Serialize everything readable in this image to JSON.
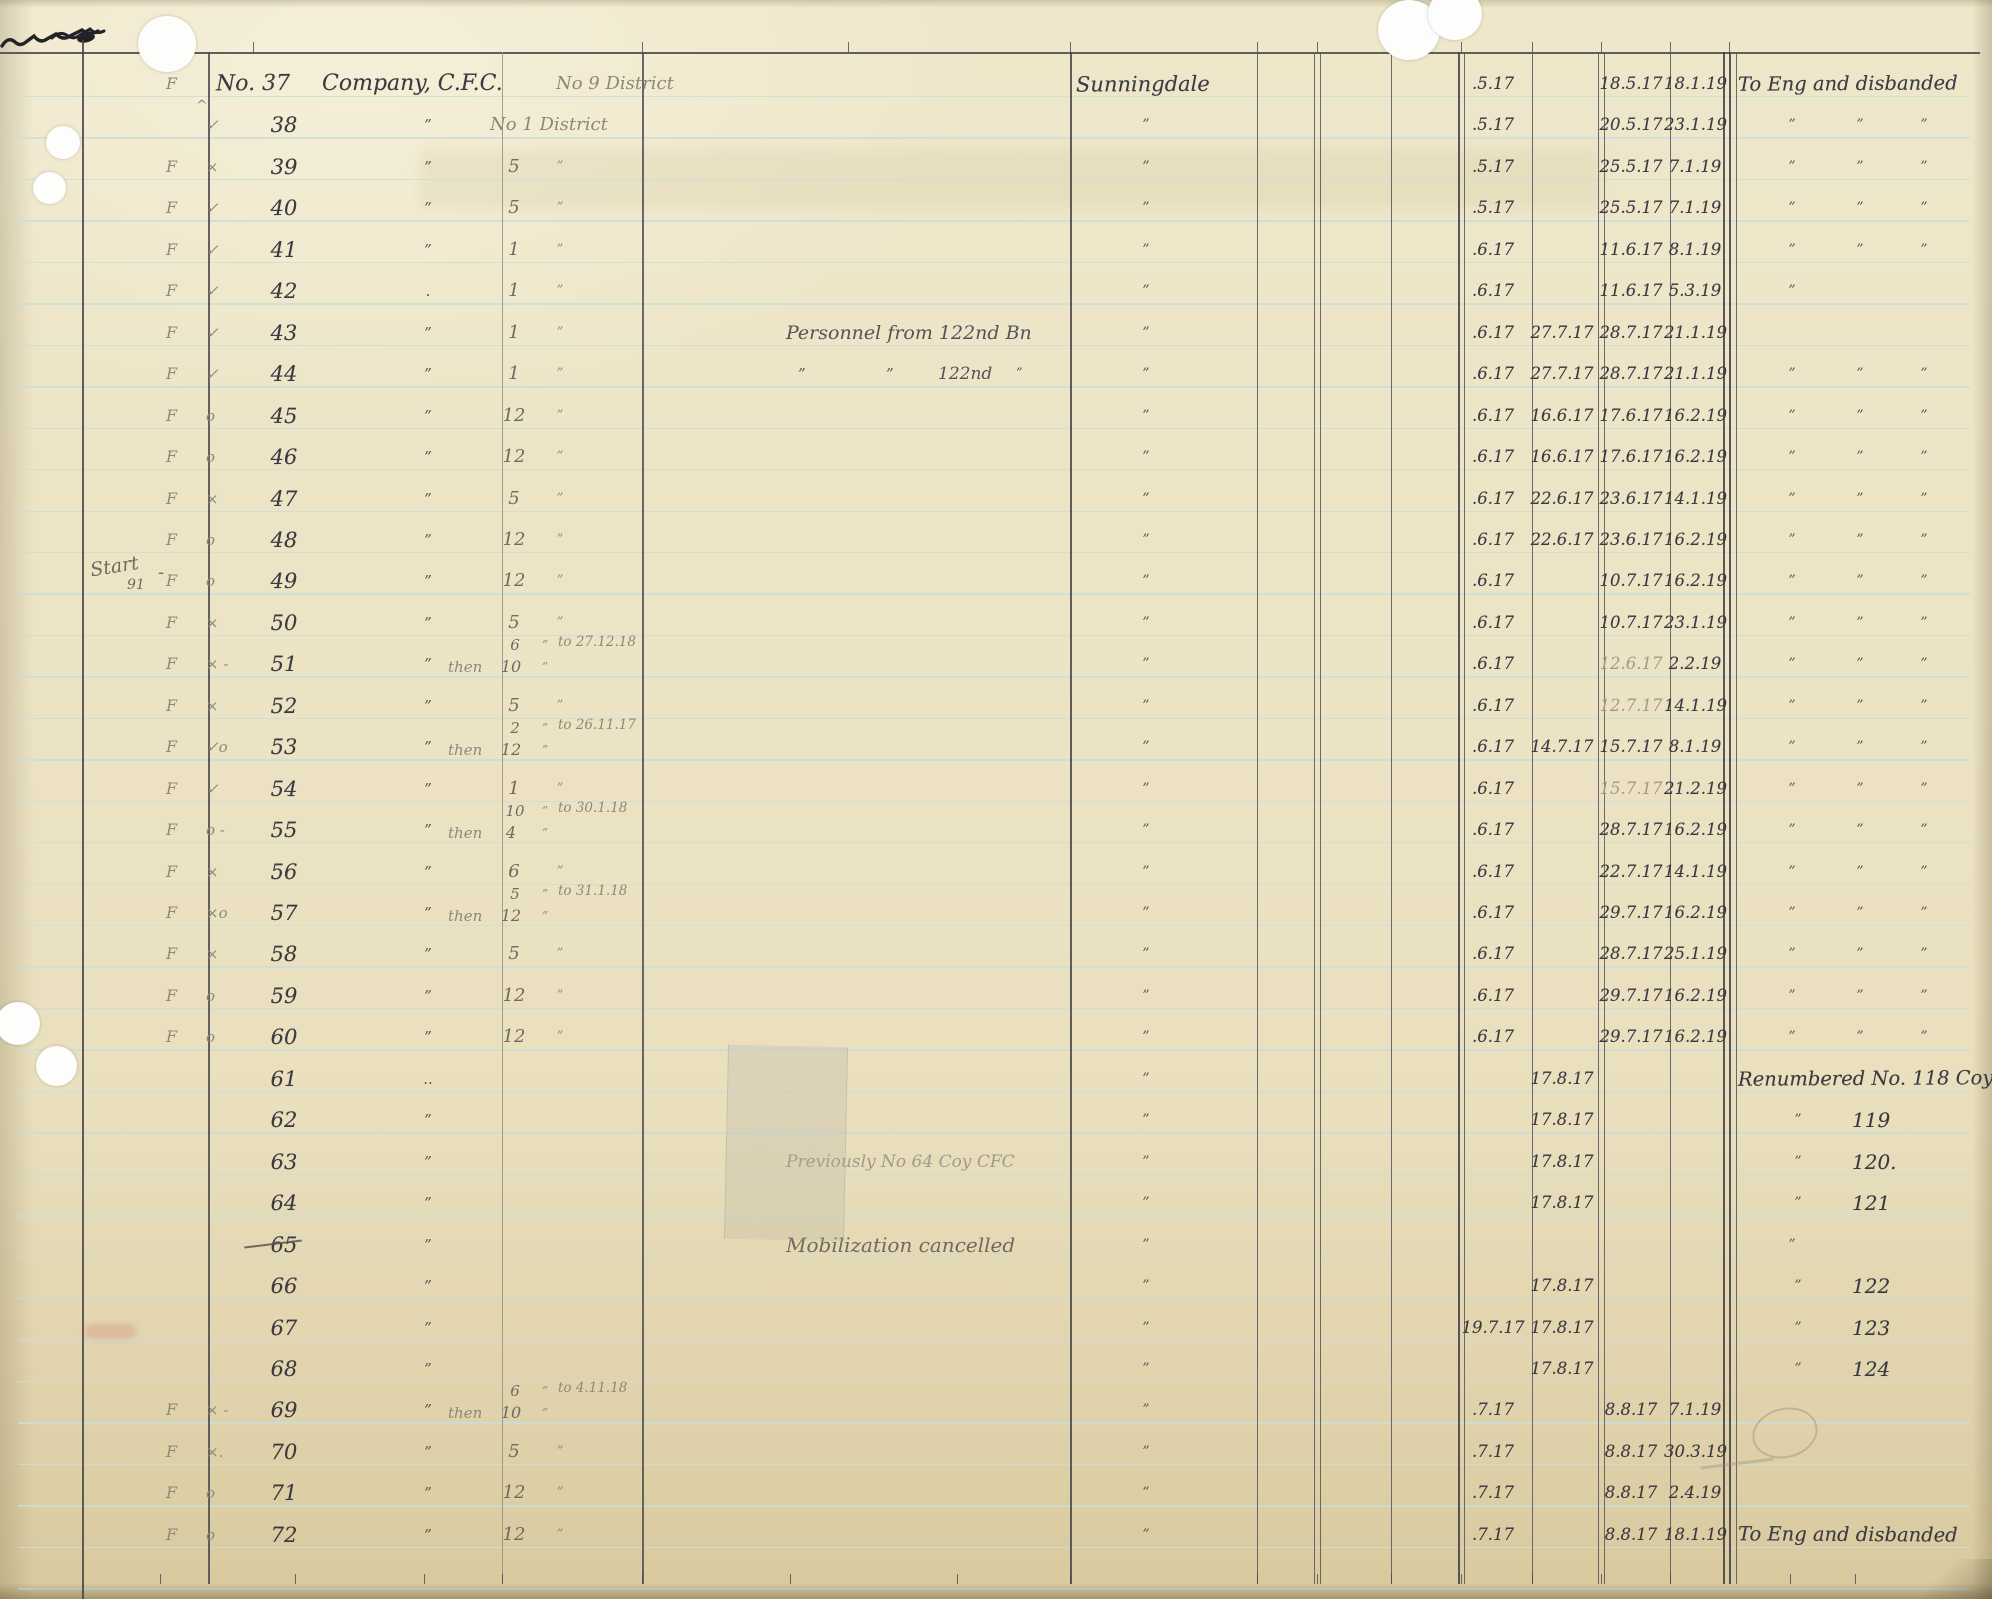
{
  "document": {
    "type": "handwritten ledger page",
    "header_row": {
      "no_label": "No.",
      "company_label": "Company, C.F.C.",
      "place": "Sunningdale"
    },
    "marginalia": {
      "start_note_word": "Start",
      "start_note_num": "91",
      "start_note_dash": "-",
      "caret": "^"
    },
    "rows": [
      {
        "no": "37",
        "f": "F",
        "no_label": "No.",
        "company": "Company, C.F.C.",
        "district_text": "No 9 District",
        "place": "Sunningdale",
        "d1": ".5.17",
        "d3": "18.5.17",
        "d4": "18.1.19",
        "remark": "To Eng and disbanded"
      },
      {
        "no": "38",
        "mark": "✓",
        "coy_ditto": "”",
        "district_text": "No 1 District",
        "place_ditto": "”",
        "d1": ".5.17",
        "d3": "20.5.17",
        "d4": "23.1.19",
        "remark_dittos": 3
      },
      {
        "no": "39",
        "f": "F",
        "mark": "×",
        "coy_ditto": "”",
        "district_no": "5",
        "district_ditto": "”",
        "place_ditto": "”",
        "d1": ".5.17",
        "d3": "25.5.17",
        "d4": "7.1.19",
        "remark_dittos": 3
      },
      {
        "no": "40",
        "f": "F",
        "mark": "✓",
        "coy_ditto": "”",
        "district_no": "5",
        "district_ditto": "”",
        "place_ditto": "”",
        "d1": ".5.17",
        "d3": "25.5.17",
        "d4": "7.1.19",
        "remark_dittos": 3
      },
      {
        "no": "41",
        "f": "F",
        "mark": "✓",
        "coy_ditto": "”",
        "district_no": "1",
        "district_ditto": "”",
        "place_ditto": "”",
        "d1": ".6.17",
        "d3": "11.6.17",
        "d4": "8.1.19",
        "remark_dittos": 3
      },
      {
        "no": "42",
        "f": "F",
        "mark": "✓",
        "coy_ditto": ".",
        "district_no": "1",
        "district_ditto": "”",
        "place_ditto": "”",
        "d1": ".6.17",
        "d3": "11.6.17",
        "d4": "5.3.19",
        "remark_dittos": 1
      },
      {
        "no": "43",
        "f": "F",
        "mark": "✓",
        "coy_ditto": "”",
        "district_no": "1",
        "district_ditto": "”",
        "note": "Personnel from 122nd Bn",
        "place_ditto": "”",
        "d1": ".6.17",
        "d2": "27.7.17",
        "d3": "28.7.17",
        "d4": "21.1.19"
      },
      {
        "no": "44",
        "f": "F",
        "mark": "✓",
        "coy_ditto": "”",
        "district_no": "1",
        "district_ditto": "”",
        "note_parts": [
          "”",
          "”",
          "122nd",
          "”"
        ],
        "place_ditto": "”",
        "d1": ".6.17",
        "d2": "27.7.17",
        "d3": "28.7.17",
        "d4": "21.1.19",
        "remark_dittos": 3
      },
      {
        "no": "45",
        "f": "F",
        "mark": "o",
        "coy_ditto": "”",
        "district_no": "12",
        "district_ditto": "”",
        "place_ditto": "”",
        "d1": ".6.17",
        "d2": "16.6.17",
        "d3": "17.6.17",
        "d4": "16.2.19",
        "remark_dittos": 3
      },
      {
        "no": "46",
        "f": "F",
        "mark": "o",
        "coy_ditto": "”",
        "district_no": "12",
        "district_ditto": "”",
        "place_ditto": "”",
        "d1": ".6.17",
        "d2": "16.6.17",
        "d3": "17.6.17",
        "d4": "16.2.19",
        "remark_dittos": 3
      },
      {
        "no": "47",
        "f": "F",
        "mark": "×",
        "coy_ditto": "”",
        "district_no": "5",
        "district_ditto": "”",
        "place_ditto": "”",
        "d1": ".6.17",
        "d2": "22.6.17",
        "d3": "23.6.17",
        "d4": "14.1.19",
        "remark_dittos": 3
      },
      {
        "no": "48",
        "f": "F",
        "mark": "o",
        "coy_ditto": "”",
        "district_no": "12",
        "district_ditto": "”",
        "place_ditto": "”",
        "d1": ".6.17",
        "d2": "22.6.17",
        "d3": "23.6.17",
        "d4": "16.2.19",
        "remark_dittos": 3
      },
      {
        "no": "49",
        "f": "F",
        "mark": "o",
        "margin_note": true,
        "coy_ditto": "”",
        "district_no": "12",
        "district_ditto": "”",
        "place_ditto": "”",
        "d1": ".6.17",
        "d3": "10.7.17",
        "d4": "16.2.19",
        "remark_dittos": 3
      },
      {
        "no": "50",
        "f": "F",
        "mark": "×",
        "coy_ditto": "”",
        "district_no": "5",
        "district_ditto": "”",
        "place_ditto": "”",
        "d1": ".6.17",
        "d3": "10.7.17",
        "d4": "23.1.19",
        "remark_dittos": 3
      },
      {
        "no": "51",
        "f": "F",
        "mark": "× -",
        "coy_ditto": "”",
        "then": {
          "label": "then",
          "top": "6",
          "bottom": "10",
          "ditto": "”",
          "to": "to 27.12.18"
        },
        "place_ditto": "”",
        "d1": ".6.17",
        "d3": "12.6.17",
        "d3_pencil": true,
        "d4": "2.2.19",
        "remark_dittos": 3
      },
      {
        "no": "52",
        "f": "F",
        "mark": "×",
        "coy_ditto": "”",
        "district_no": "5",
        "district_ditto": "”",
        "place_ditto": "”",
        "d1": ".6.17",
        "d3": "12.7.17",
        "d3_pencil": true,
        "d4": "14.1.19",
        "remark_dittos": 3
      },
      {
        "no": "53",
        "f": "F",
        "mark": "✓o",
        "coy_ditto": "”",
        "then": {
          "label": "then",
          "top": "2",
          "bottom": "12",
          "ditto": "”",
          "to": "to 26.11.17"
        },
        "place_ditto": "”",
        "d1": ".6.17",
        "d2": "14.7.17",
        "d3": "15.7.17",
        "d4": "8.1.19",
        "remark_dittos": 3
      },
      {
        "no": "54",
        "f": "F",
        "mark": "✓",
        "coy_ditto": "”",
        "district_no": "1",
        "district_ditto": "”",
        "place_ditto": "”",
        "d1": ".6.17",
        "d3": "15.7.17",
        "d3_pencil": true,
        "d4": "21.2.19",
        "remark_dittos": 3
      },
      {
        "no": "55",
        "f": "F",
        "mark": "o -",
        "coy_ditto": "”",
        "then": {
          "label": "then",
          "top": "10",
          "bottom": "4",
          "ditto": "”",
          "to": "to 30.1.18"
        },
        "place_ditto": "”",
        "d1": ".6.17",
        "d3": "28.7.17",
        "d4": "16.2.19",
        "remark_dittos": 3
      },
      {
        "no": "56",
        "f": "F",
        "mark": "×",
        "coy_ditto": "”",
        "district_no": "6",
        "district_ditto": "”",
        "place_ditto": "”",
        "d1": ".6.17",
        "d3": "22.7.17",
        "d4": "14.1.19",
        "remark_dittos": 3
      },
      {
        "no": "57",
        "f": "F",
        "mark": "×o",
        "coy_ditto": "”",
        "then": {
          "label": "then",
          "top": "5",
          "bottom": "12",
          "ditto": "”",
          "to": "to 31.1.18"
        },
        "place_ditto": "”",
        "d1": ".6.17",
        "d3": "29.7.17",
        "d4": "16.2.19",
        "remark_dittos": 3
      },
      {
        "no": "58",
        "f": "F",
        "mark": "×",
        "coy_ditto": "”",
        "district_no": "5",
        "district_ditto": "”",
        "place_ditto": "”",
        "d1": ".6.17",
        "d3": "28.7.17",
        "d4": "25.1.19",
        "remark_dittos": 3
      },
      {
        "no": "59",
        "f": "F",
        "mark": "o",
        "coy_ditto": "”",
        "district_no": "12",
        "district_ditto": "”",
        "place_ditto": "”",
        "d1": ".6.17",
        "d3": "29.7.17",
        "d4": "16.2.19",
        "remark_dittos": 3
      },
      {
        "no": "60",
        "f": "F",
        "mark": "o",
        "coy_ditto": "”",
        "district_no": "12",
        "district_ditto": "”",
        "place_ditto": "”",
        "d1": ".6.17",
        "d3": "29.7.17",
        "d4": "16.2.19",
        "remark_dittos": 3
      },
      {
        "no": "61",
        "coy_ditto": "..",
        "place_ditto": "”",
        "d2": "17.8.17",
        "remark": "Renumbered No. 118 Coy"
      },
      {
        "no": "62",
        "coy_ditto": "”",
        "place_ditto": "”",
        "d2": "17.8.17",
        "renumber_ditto": "”",
        "renumber_num": "119"
      },
      {
        "no": "63",
        "coy_ditto": "”",
        "note": "Previously No 64 Coy CFC",
        "note_pencil": true,
        "place_ditto": "”",
        "d2": "17.8.17",
        "renumber_ditto": "”",
        "renumber_num": "120."
      },
      {
        "no": "64",
        "coy_ditto": "”",
        "place_ditto": "”",
        "d2": "17.8.17",
        "renumber_ditto": "”",
        "renumber_num": "121"
      },
      {
        "no": "65",
        "strike": true,
        "coy_ditto": "”",
        "note": "Mobilization cancelled",
        "note_pencil2": true,
        "place_ditto": "”",
        "remark_dittos": 1
      },
      {
        "no": "66",
        "coy_ditto": "”",
        "place_ditto": "”",
        "d2": "17.8.17",
        "renumber_ditto": "”",
        "renumber_num": "122"
      },
      {
        "no": "67",
        "coy_ditto": "”",
        "place_ditto": "”",
        "d1": "19.7.17",
        "d2": "17.8.17",
        "renumber_ditto": "”",
        "renumber_num": "123"
      },
      {
        "no": "68",
        "coy_ditto": "”",
        "place_ditto": "”",
        "d2": "17.8.17",
        "renumber_ditto": "”",
        "renumber_num": "124"
      },
      {
        "no": "69",
        "f": "F",
        "mark": "× -",
        "coy_ditto": "”",
        "then": {
          "label": "then",
          "top": "6",
          "bottom": "10",
          "ditto": "”",
          "to": "to 4.11.18"
        },
        "place_ditto": "”",
        "d1": ".7.17",
        "d3": "8.8.17",
        "d4": "7.1.19"
      },
      {
        "no": "70",
        "f": "F",
        "mark": "×.",
        "coy_ditto": "”",
        "district_no": "5",
        "district_ditto": "”",
        "place_ditto": "”",
        "d1": ".7.17",
        "d3": "8.8.17",
        "d4": "30.3.19"
      },
      {
        "no": "71",
        "f": "F",
        "mark": "o",
        "coy_ditto": "”",
        "district_no": "12",
        "district_ditto": "”",
        "place_ditto": "”",
        "d1": ".7.17",
        "d3": "8.8.17",
        "d4": "2.4.19"
      },
      {
        "no": "72",
        "f": "F",
        "mark": "o",
        "coy_ditto": "”",
        "district_no": "12",
        "district_ditto": "”",
        "place_ditto": "”",
        "d1": ".7.17",
        "d3": "8.8.17",
        "d4": "18.1.19",
        "remark": "To Eng and disbanded"
      }
    ]
  }
}
